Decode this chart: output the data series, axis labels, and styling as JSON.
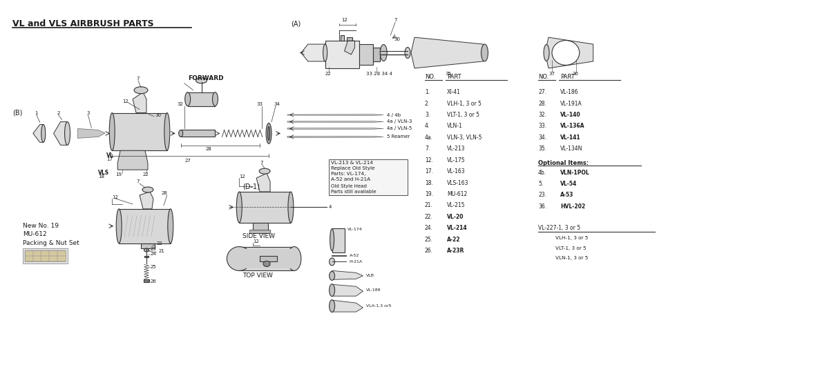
{
  "title": "VL and VLS AIRBRUSH PARTS",
  "background_color": "#ffffff",
  "text_color": "#1a1a1a",
  "line_color": "#333333",
  "parts_list_col1": [
    [
      "1.",
      "XI-41"
    ],
    [
      "2.",
      "VLH-1, 3 or 5"
    ],
    [
      "3.",
      "VLT-1, 3 or 5"
    ],
    [
      "4.",
      "VLN-1"
    ],
    [
      "4a.",
      "VLN-3, VLN-5"
    ],
    [
      "7.",
      "VL-213"
    ],
    [
      "12.",
      "VL-175"
    ],
    [
      "17.",
      "VL-163"
    ],
    [
      "18.",
      "VLS-163"
    ],
    [
      "19.",
      "MU-612"
    ],
    [
      "21.",
      "VL-215"
    ],
    [
      "22.",
      "VL-20"
    ],
    [
      "24.",
      "VL-214"
    ],
    [
      "25.",
      "A-22"
    ],
    [
      "26.",
      "A-23R"
    ]
  ],
  "parts_list_col2": [
    [
      "27.",
      "VL-186"
    ],
    [
      "28.",
      "VL-191A"
    ],
    [
      "32.",
      "VL-140"
    ],
    [
      "33.",
      "VL-136A"
    ],
    [
      "34.",
      "VL-141"
    ],
    [
      "35.",
      "VL-134N"
    ]
  ],
  "optional_items": [
    [
      "4b.",
      "VLN-1POL"
    ],
    [
      "5.",
      "VL-54"
    ],
    [
      "23.",
      "A-53"
    ],
    [
      "36.",
      "HVL-202"
    ]
  ],
  "vl_227": "VL-227-1, 3 or 5",
  "vl_227_sub": [
    "VLH-1, 3 or 5",
    "VLT-1, 3 or 5",
    "VLN-1, 3 or 5"
  ],
  "diagram_labels": {
    "A": "(A)",
    "B": "(B)",
    "D1": "(D-1)",
    "forward": "FORWARD",
    "side_view": "SIDE VIEW",
    "top_view": "TOP VIEW",
    "new19": "New No. 19",
    "mu612": "MU-612",
    "packing": "Packing & Nut Set",
    "vl213_line1": "VL-213 & VL-214",
    "vl213_line2": "Replace Old Style",
    "vl213_line3": "Parts: VL-174,",
    "vl213_line4": "A-52 and H-21A",
    "old_style_line1": "Old Style Head",
    "old_style_line2": "Parts still available"
  }
}
